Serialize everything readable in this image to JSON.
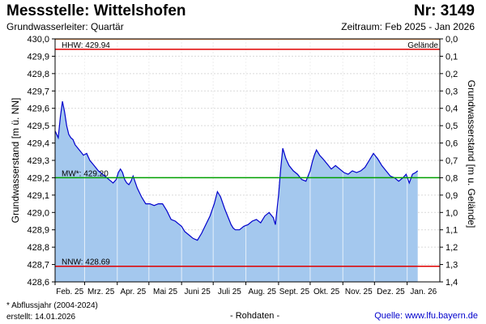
{
  "header": {
    "title": "Messstelle: Wittelshofen",
    "station": "Nr: 3149",
    "aquifer": "Grundwasserleiter: Quartär",
    "period": "Zeitraum: Feb 2025 - Jan 2026"
  },
  "footer": {
    "footnote": "* Abflussjahr (2004-2024)",
    "created": "erstellt:  14.01.2026",
    "rawdata": "- Rohdaten -",
    "source": "Quelle: www.lfu.bayern.de"
  },
  "colors": {
    "fill": "#a4c8ee",
    "line": "#0000cc",
    "hhw": "#e00000",
    "nnw": "#e00000",
    "mw": "#00a000",
    "gelaende": "#f0a060",
    "grid": "#d9d9d9",
    "link": "#0000cc"
  },
  "chart_data": {
    "type": "area",
    "ylabel": "Grundwasserstand [m ü. NN]",
    "y2label": "Grundwasserstand [m u. Gelände]",
    "ylim": [
      428.6,
      430.0
    ],
    "y2lim": [
      0.0,
      1.4
    ],
    "gelaende_level": 430.0,
    "gelaende_label": "Gelände",
    "y_ticks": [
      "428,6",
      "428,7",
      "428,8",
      "428,9",
      "429,0",
      "429,1",
      "429,2",
      "429,3",
      "429,4",
      "429,5",
      "429,6",
      "429,7",
      "429,8",
      "429,9",
      "430,0"
    ],
    "y2_ticks": [
      "1,4",
      "1,3",
      "1,2",
      "1,1",
      "1,0",
      "0,9",
      "0,8",
      "0,7",
      "0,6",
      "0,5",
      "0,4",
      "0,3",
      "0,2",
      "0,1",
      "0,0"
    ],
    "x_ticks": [
      "Feb. 25",
      "Mrz. 25",
      "Apr. 25",
      "Mai 25",
      "Juni 25",
      "Juli 25",
      "Aug. 25",
      "Sept. 25",
      "Okt. 25",
      "Nov. 25",
      "Dez. 25",
      "Jan. 26"
    ],
    "reference_lines": [
      {
        "label": "HHW: 429.94",
        "value": 429.94
      },
      {
        "label": "MW*: 429.20",
        "value": 429.2
      },
      {
        "label": "NNW: 428.69",
        "value": 428.69
      }
    ],
    "series": [
      {
        "x": [
          "2025-02-01",
          "2025-02-04",
          "2025-02-06",
          "2025-02-08",
          "2025-02-10",
          "2025-02-12",
          "2025-02-14",
          "2025-02-16",
          "2025-02-18",
          "2025-02-20",
          "2025-02-24",
          "2025-02-28",
          "2025-03-03",
          "2025-03-06",
          "2025-03-10",
          "2025-03-14",
          "2025-03-18",
          "2025-03-22",
          "2025-03-26",
          "2025-03-28",
          "2025-03-31",
          "2025-04-02",
          "2025-04-04",
          "2025-04-06",
          "2025-04-08",
          "2025-04-10",
          "2025-04-12",
          "2025-04-14",
          "2025-04-16",
          "2025-04-20",
          "2025-04-24",
          "2025-04-28",
          "2025-05-02",
          "2025-05-06",
          "2025-05-10",
          "2025-05-14",
          "2025-05-18",
          "2025-05-22",
          "2025-05-26",
          "2025-05-30",
          "2025-06-01",
          "2025-06-04",
          "2025-06-08",
          "2025-06-12",
          "2025-06-16",
          "2025-06-20",
          "2025-06-24",
          "2025-06-28",
          "2025-07-02",
          "2025-07-05",
          "2025-07-08",
          "2025-07-12",
          "2025-07-16",
          "2025-07-18",
          "2025-07-20",
          "2025-07-22",
          "2025-07-26",
          "2025-07-30",
          "2025-08-03",
          "2025-08-07",
          "2025-08-11",
          "2025-08-15",
          "2025-08-19",
          "2025-08-23",
          "2025-08-27",
          "2025-08-29",
          "2025-09-01",
          "2025-09-03",
          "2025-09-05",
          "2025-09-08",
          "2025-09-11",
          "2025-09-15",
          "2025-09-19",
          "2025-09-23",
          "2025-09-27",
          "2025-10-01",
          "2025-10-03",
          "2025-10-05",
          "2025-10-07",
          "2025-10-10",
          "2025-10-13",
          "2025-10-17",
          "2025-10-21",
          "2025-10-25",
          "2025-10-29",
          "2025-11-02",
          "2025-11-06",
          "2025-11-10",
          "2025-11-14",
          "2025-11-18",
          "2025-11-22",
          "2025-11-26",
          "2025-11-30",
          "2025-12-04",
          "2025-12-08",
          "2025-12-12",
          "2025-12-16",
          "2025-12-20",
          "2025-12-24",
          "2025-12-28",
          "2025-12-31",
          "2026-01-03",
          "2026-01-06",
          "2026-01-09",
          "2026-01-11"
        ],
        "values": [
          429.47,
          429.43,
          429.55,
          429.64,
          429.58,
          429.5,
          429.45,
          429.43,
          429.42,
          429.39,
          429.36,
          429.33,
          429.34,
          429.3,
          429.27,
          429.24,
          429.22,
          429.2,
          429.18,
          429.17,
          429.19,
          429.23,
          429.25,
          429.23,
          429.19,
          429.17,
          429.16,
          429.18,
          429.21,
          429.14,
          429.09,
          429.05,
          429.05,
          429.04,
          429.05,
          429.05,
          429.01,
          428.96,
          428.95,
          428.93,
          428.92,
          428.89,
          428.87,
          428.85,
          428.84,
          428.88,
          428.93,
          428.98,
          429.05,
          429.12,
          429.09,
          429.02,
          428.96,
          428.93,
          428.91,
          428.9,
          428.9,
          428.92,
          428.93,
          428.95,
          428.96,
          428.94,
          428.98,
          429.0,
          428.97,
          428.93,
          429.1,
          429.25,
          429.37,
          429.31,
          429.27,
          429.24,
          429.22,
          429.19,
          429.18,
          429.24,
          429.29,
          429.33,
          429.36,
          429.33,
          429.31,
          429.28,
          429.25,
          429.27,
          429.25,
          429.23,
          429.22,
          429.24,
          429.23,
          429.24,
          429.26,
          429.3,
          429.34,
          429.31,
          429.27,
          429.24,
          429.21,
          429.2,
          429.18,
          429.2,
          429.22,
          429.17,
          429.22,
          429.23,
          429.24
        ]
      }
    ]
  }
}
